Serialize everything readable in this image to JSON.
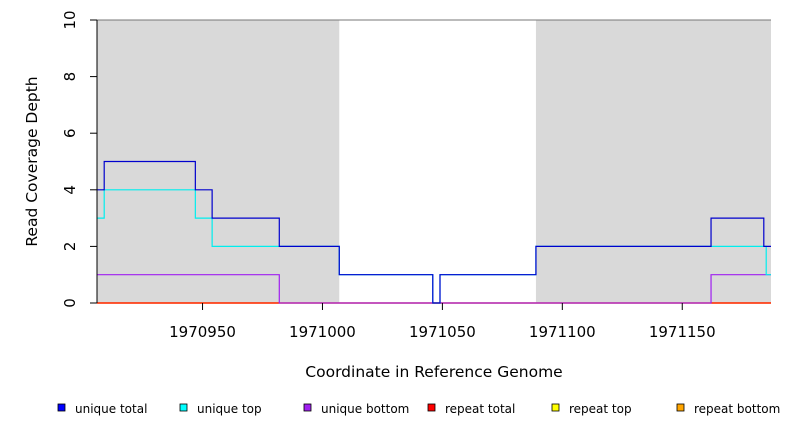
{
  "chart_data": {
    "type": "line",
    "step": true,
    "xlabel": "Coordinate in Reference Genome",
    "ylabel": "Read Coverage Depth",
    "xlim": [
      1970906,
      1971187
    ],
    "ylim": [
      0,
      10
    ],
    "x_ticks": [
      1970950,
      1971000,
      1971050,
      1971100,
      1971150
    ],
    "y_ticks": [
      0,
      2,
      4,
      6,
      8,
      10
    ],
    "grid": false,
    "background": "white",
    "shaded_regions": [
      {
        "x": [
          1970906,
          1971007
        ],
        "color": "#d9d9d9"
      },
      {
        "x": [
          1971089,
          1971187
        ],
        "color": "#d9d9d9"
      }
    ],
    "legend_position": "bottom",
    "series": [
      {
        "name": "repeat bottom",
        "color": "#ffa500",
        "points": [
          [
            1970906,
            0
          ],
          [
            1971187,
            0
          ]
        ]
      },
      {
        "name": "repeat top",
        "color": "#ffff00",
        "points": [
          [
            1970906,
            0
          ],
          [
            1971187,
            0
          ]
        ]
      },
      {
        "name": "repeat total",
        "color": "#ff0000",
        "points": [
          [
            1970906,
            0
          ],
          [
            1971187,
            0
          ]
        ]
      },
      {
        "name": "unique bottom",
        "color": "#a020f0",
        "points": [
          [
            1970906,
            1
          ],
          [
            1970982,
            1
          ],
          [
            1970982,
            0
          ],
          [
            1971162,
            0
          ],
          [
            1971162,
            1
          ],
          [
            1971187,
            1
          ]
        ]
      },
      {
        "name": "unique top",
        "color": "#00eeee",
        "points": [
          [
            1970906,
            3
          ],
          [
            1970909,
            3
          ],
          [
            1970909,
            4
          ],
          [
            1970947,
            4
          ],
          [
            1970947,
            3
          ],
          [
            1970954,
            3
          ],
          [
            1970954,
            2
          ],
          [
            1971007,
            2
          ],
          [
            1971007,
            1
          ],
          [
            1971046,
            1
          ],
          [
            1971046,
            0
          ],
          [
            1971049,
            0
          ],
          [
            1971049,
            1
          ],
          [
            1971089,
            1
          ],
          [
            1971089,
            2
          ],
          [
            1971185,
            2
          ],
          [
            1971185,
            1
          ],
          [
            1971187,
            1
          ]
        ]
      },
      {
        "name": "unique total",
        "color": "#0000cd",
        "points": [
          [
            1970906,
            4
          ],
          [
            1970909,
            4
          ],
          [
            1970909,
            5
          ],
          [
            1970947,
            5
          ],
          [
            1970947,
            4
          ],
          [
            1970954,
            4
          ],
          [
            1970954,
            3
          ],
          [
            1970982,
            3
          ],
          [
            1970982,
            2
          ],
          [
            1971007,
            2
          ],
          [
            1971007,
            1
          ],
          [
            1971046,
            1
          ],
          [
            1971046,
            0
          ],
          [
            1971049,
            0
          ],
          [
            1971049,
            1
          ],
          [
            1971089,
            1
          ],
          [
            1971089,
            2
          ],
          [
            1971162,
            2
          ],
          [
            1971162,
            3
          ],
          [
            1971184,
            3
          ],
          [
            1971184,
            2
          ],
          [
            1971187,
            2
          ]
        ]
      }
    ],
    "legend": [
      {
        "label": "unique total",
        "color": "#0000ff"
      },
      {
        "label": "unique top",
        "color": "#00ffff"
      },
      {
        "label": "unique bottom",
        "color": "#a020f0"
      },
      {
        "label": "repeat total",
        "color": "#ff0000"
      },
      {
        "label": "repeat top",
        "color": "#ffff00"
      },
      {
        "label": "repeat bottom",
        "color": "#ffa500"
      }
    ]
  }
}
